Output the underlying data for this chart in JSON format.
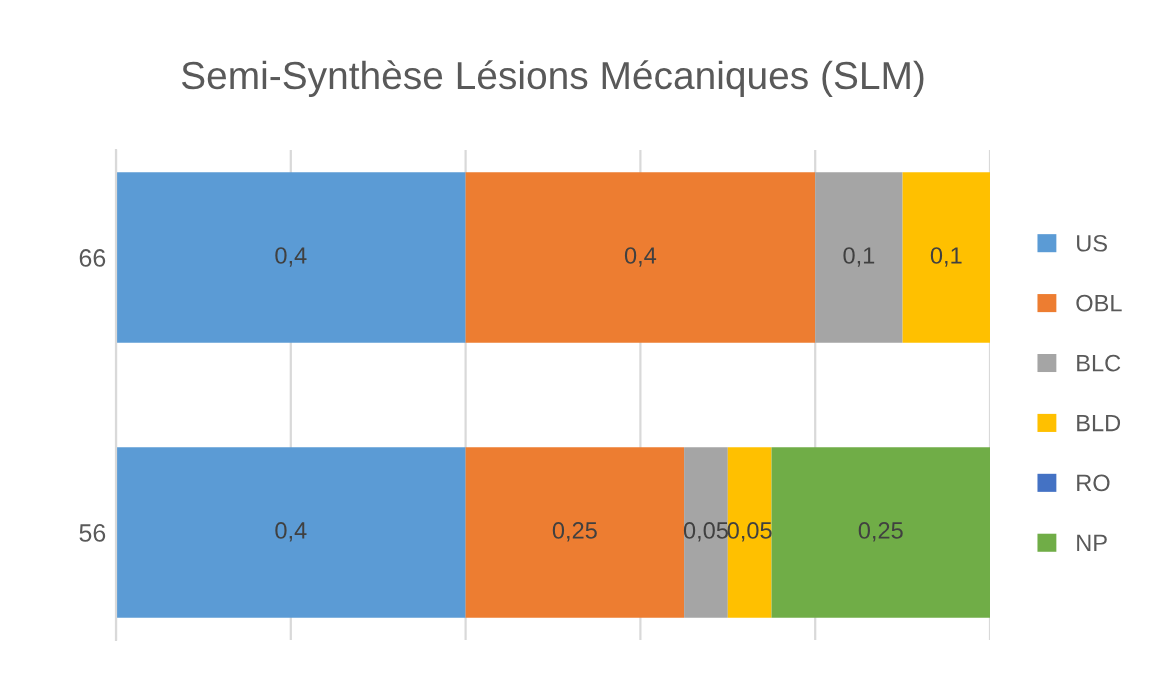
{
  "chart_data": {
    "type": "bar",
    "orientation": "horizontal",
    "stacked": true,
    "title": "Semi-Synthèse Lésions Mécaniques (SLM)",
    "categories": [
      "66",
      "56"
    ],
    "series": [
      {
        "name": "US",
        "color": "#5b9bd5",
        "values": [
          0.4,
          0.4
        ],
        "value_labels": [
          "0,4",
          "0,4"
        ]
      },
      {
        "name": "OBL",
        "color": "#ed7d31",
        "values": [
          0.4,
          0.25
        ],
        "value_labels": [
          "0,4",
          "0,25"
        ]
      },
      {
        "name": "BLC",
        "color": "#a5a5a5",
        "values": [
          0.1,
          0.05
        ],
        "value_labels": [
          "0,1",
          "0,05"
        ]
      },
      {
        "name": "BLD",
        "color": "#ffc000",
        "values": [
          0.1,
          0.05
        ],
        "value_labels": [
          "0,1",
          "0,05"
        ]
      },
      {
        "name": "RO",
        "color": "#4472c4",
        "values": [
          null,
          null
        ],
        "value_labels": [
          null,
          null
        ]
      },
      {
        "name": "NP",
        "color": "#70ad47",
        "values": [
          null,
          0.25
        ],
        "value_labels": [
          null,
          "0,25"
        ]
      }
    ],
    "xlim": [
      0,
      1
    ],
    "xticks": [
      {
        "value": 0,
        "label": null
      },
      {
        "value": 0.2,
        "label": null
      },
      {
        "value": 0.4,
        "label": null
      },
      {
        "value": 0.6,
        "label": null
      },
      {
        "value": 0.8,
        "label": null
      },
      {
        "value": 1,
        "label": null
      }
    ],
    "tick_labels": "y",
    "grid": "x",
    "legend": "right"
  }
}
